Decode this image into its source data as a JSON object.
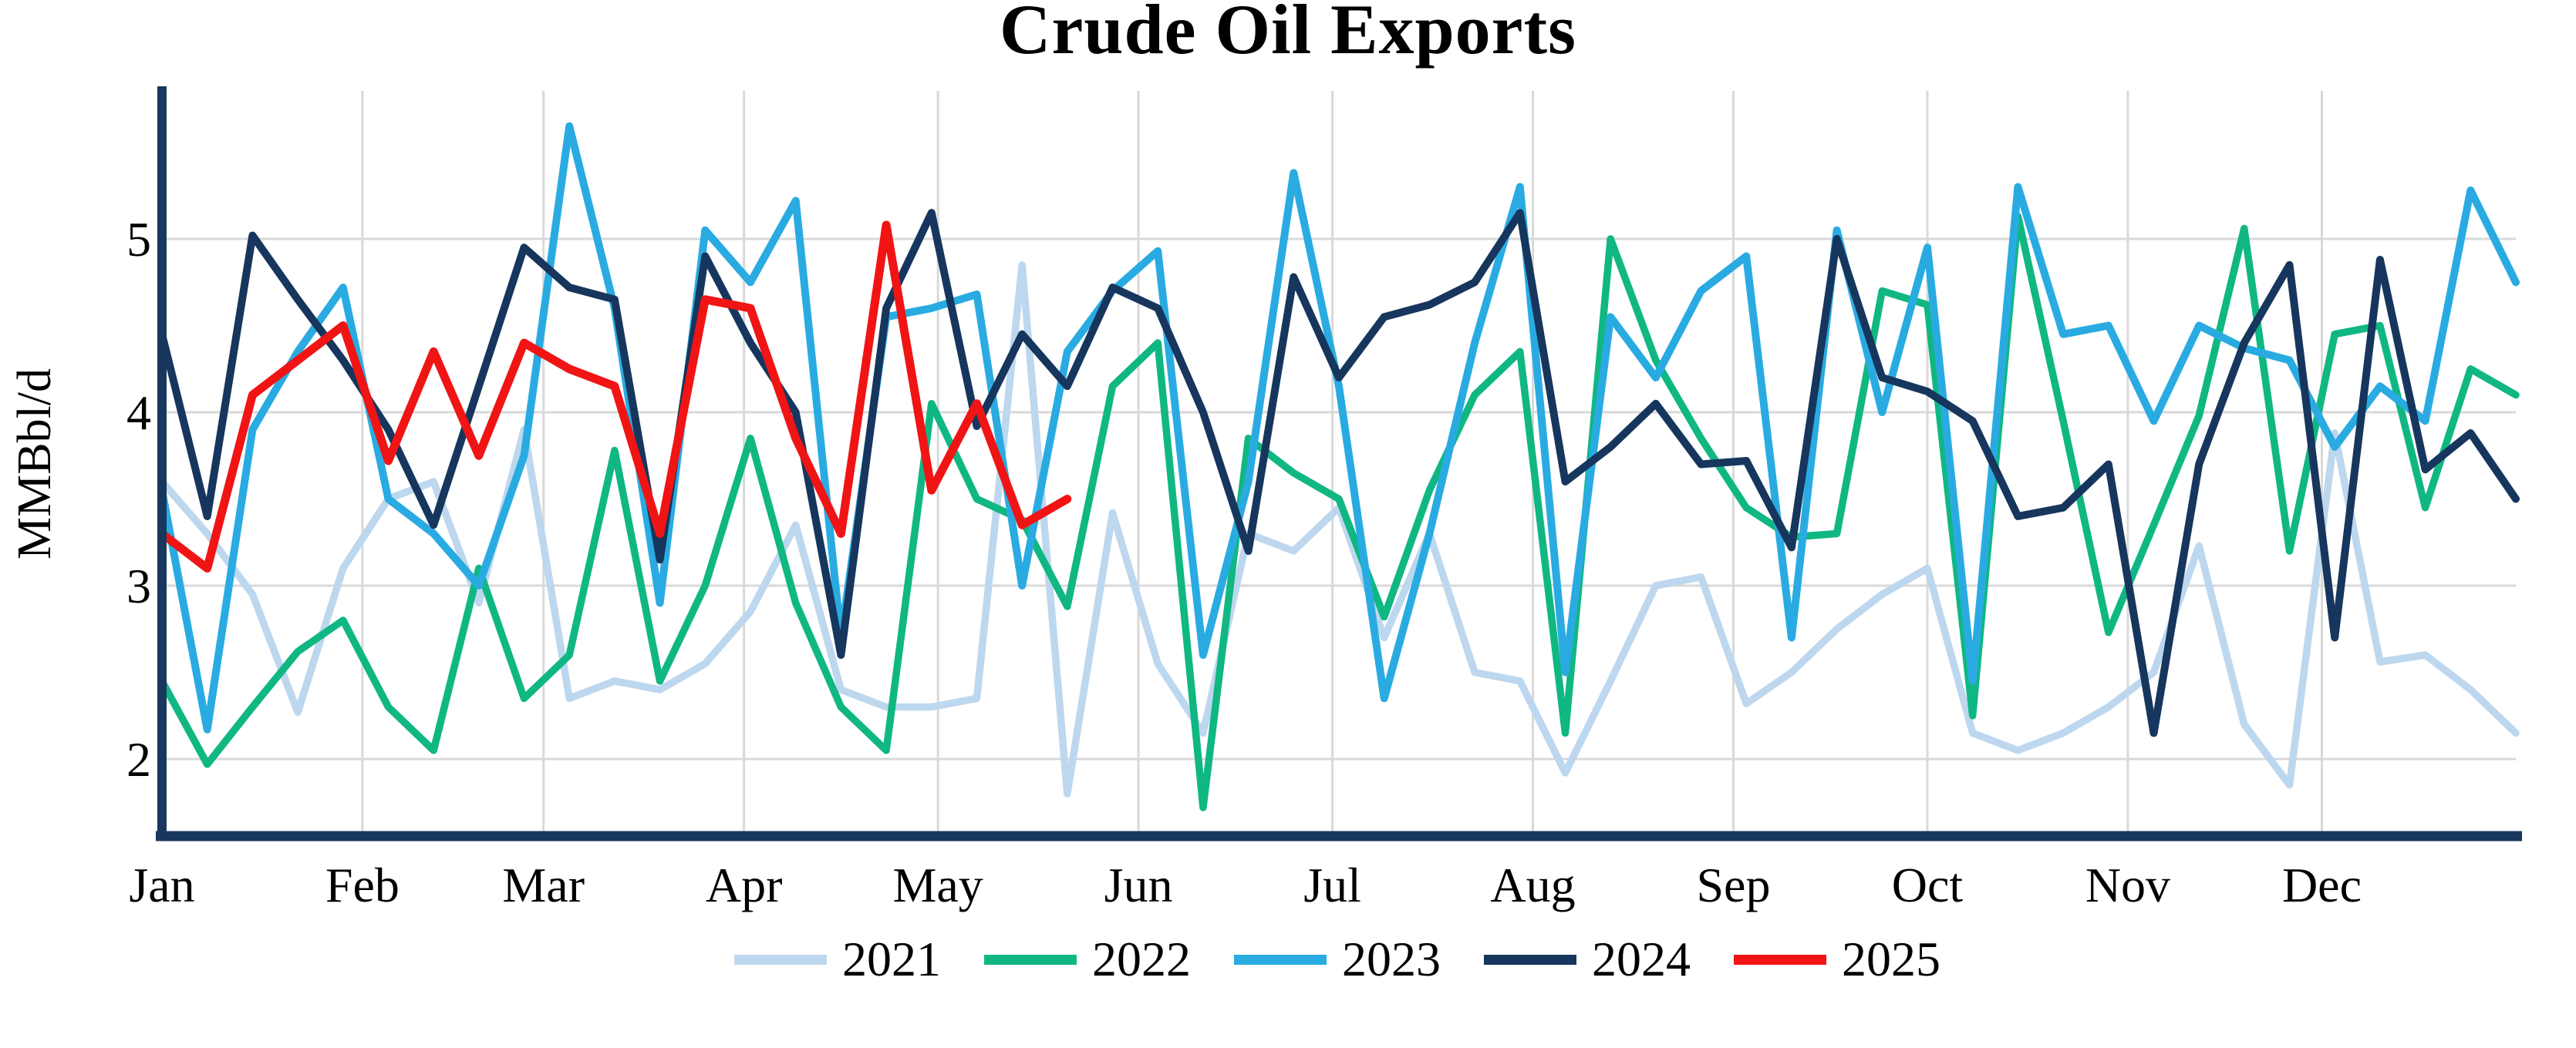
{
  "chart_data": {
    "type": "line",
    "title": "Crude Oil Exports",
    "ylabel": "MMBbl/d",
    "xlabel": "",
    "x_ticks": [
      "Jan",
      "Feb",
      "Mar",
      "Apr",
      "May",
      "Jun",
      "Jul",
      "Aug",
      "Sep",
      "Oct",
      "Nov",
      "Dec"
    ],
    "y_ticks": [
      "2",
      "3",
      "4",
      "5"
    ],
    "y_tick_values": [
      2,
      3,
      4,
      5
    ],
    "ylim": [
      1.56,
      5.84
    ],
    "x_unit": "weekly",
    "points_per_full_year": 53,
    "grid": true,
    "legend_position": "bottom",
    "grid_color": "#D9D9D9",
    "axis_color": "#17375E",
    "background_color": "#FFFFFF",
    "month_start_days": [
      0,
      31,
      59,
      90,
      120,
      151,
      181,
      212,
      243,
      273,
      304,
      334
    ],
    "series": [
      {
        "name": "2021",
        "color": "#BDD7EE",
        "stroke_width": 9.5,
        "values": [
          3.6,
          3.3,
          2.95,
          2.27,
          3.1,
          3.5,
          3.6,
          2.9,
          3.9,
          2.35,
          2.45,
          2.4,
          2.55,
          2.85,
          3.35,
          2.4,
          2.3,
          2.3,
          2.35,
          4.85,
          1.8,
          3.42,
          2.55,
          2.15,
          3.3,
          3.2,
          3.45,
          2.7,
          3.3,
          2.5,
          2.45,
          1.92,
          2.45,
          3.0,
          3.05,
          2.32,
          2.5,
          2.75,
          2.95,
          3.1,
          2.15,
          2.05,
          2.15,
          2.3,
          2.5,
          3.23,
          2.2,
          1.85,
          3.88,
          2.56,
          2.6,
          2.4,
          2.15
        ]
      },
      {
        "name": "2022",
        "color": "#10B783",
        "stroke_width": 9.5,
        "values": [
          2.45,
          1.97,
          2.3,
          2.62,
          2.8,
          2.3,
          2.05,
          3.1,
          2.35,
          2.6,
          3.78,
          2.45,
          3.0,
          3.85,
          2.9,
          2.3,
          2.05,
          4.05,
          3.5,
          3.38,
          2.88,
          4.15,
          4.4,
          1.72,
          3.85,
          3.65,
          3.5,
          2.82,
          3.55,
          4.1,
          4.35,
          2.15,
          5.0,
          4.3,
          3.85,
          3.45,
          3.28,
          3.3,
          4.7,
          4.62,
          2.25,
          5.13,
          3.95,
          2.73,
          3.35,
          3.98,
          5.06,
          3.2,
          4.45,
          4.5,
          3.45,
          4.25,
          4.1
        ]
      },
      {
        "name": "2023",
        "color": "#29ABE2",
        "stroke_width": 10,
        "values": [
          3.55,
          2.17,
          3.9,
          4.35,
          4.72,
          3.5,
          3.3,
          3.0,
          3.75,
          5.65,
          4.6,
          2.9,
          5.05,
          4.75,
          5.22,
          2.7,
          4.55,
          4.6,
          4.68,
          3.0,
          4.35,
          4.7,
          4.93,
          2.6,
          3.6,
          5.38,
          4.15,
          2.35,
          3.3,
          4.4,
          5.3,
          2.5,
          4.55,
          4.2,
          4.7,
          4.9,
          2.7,
          5.05,
          4.0,
          4.95,
          2.45,
          5.3,
          4.45,
          4.5,
          3.95,
          4.5,
          4.37,
          4.3,
          3.8,
          4.15,
          3.95,
          5.28,
          4.75
        ]
      },
      {
        "name": "2024",
        "color": "#16365D",
        "stroke_width": 10,
        "values": [
          4.45,
          3.4,
          5.02,
          4.65,
          4.3,
          3.9,
          3.35,
          4.15,
          4.95,
          4.72,
          4.65,
          3.15,
          4.9,
          4.4,
          4.0,
          2.6,
          4.6,
          5.15,
          3.92,
          4.45,
          4.15,
          4.72,
          4.6,
          4.0,
          3.2,
          4.78,
          4.2,
          4.55,
          4.62,
          4.75,
          5.15,
          3.6,
          3.8,
          4.05,
          3.7,
          3.72,
          3.22,
          5.0,
          4.2,
          4.12,
          3.95,
          3.4,
          3.45,
          3.7,
          2.15,
          3.7,
          4.4,
          4.85,
          2.7,
          4.88,
          3.67,
          3.88,
          3.5
        ]
      },
      {
        "name": "2025",
        "color": "#F01414",
        "stroke_width": 11,
        "values": [
          3.3,
          3.1,
          4.1,
          4.3,
          4.5,
          3.72,
          4.35,
          3.75,
          4.4,
          4.25,
          4.15,
          3.3,
          4.65,
          4.6,
          3.85,
          3.3,
          5.08,
          3.55,
          4.05,
          3.35,
          3.5
        ]
      }
    ]
  }
}
